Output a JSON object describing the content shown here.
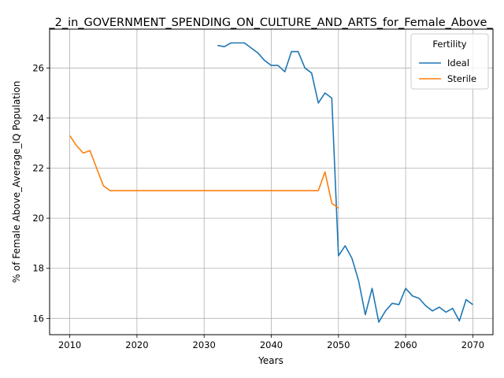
{
  "chart_data": {
    "type": "line",
    "title": "_2_in_GOVERNMENT_SPENDING_ON_CULTURE_AND_ARTS_for_Female_Above_",
    "xlabel": "Years",
    "ylabel": "% of Female Above_Average_IQ Population",
    "xlim": [
      2007,
      2073
    ],
    "ylim": [
      15.35,
      27.55
    ],
    "xticks": [
      2010,
      2020,
      2030,
      2040,
      2050,
      2060,
      2070
    ],
    "yticks": [
      16,
      18,
      20,
      22,
      24,
      26
    ],
    "grid": true,
    "legend": {
      "title": "Fertility",
      "placement": "top-right"
    },
    "series": [
      {
        "name": "Ideal",
        "color": "#1f77b4",
        "x": [
          2032,
          2033,
          2034,
          2035,
          2036,
          2037,
          2038,
          2039,
          2040,
          2041,
          2042,
          2043,
          2044,
          2045,
          2046,
          2047,
          2048,
          2049,
          2050,
          2051,
          2052,
          2053,
          2054,
          2055,
          2056,
          2057,
          2058,
          2059,
          2060,
          2061,
          2062,
          2063,
          2064,
          2065,
          2066,
          2067,
          2068,
          2069,
          2070
        ],
        "y": [
          26.9,
          26.85,
          27.0,
          27.0,
          27.0,
          26.8,
          26.6,
          26.3,
          26.1,
          26.1,
          25.85,
          26.65,
          26.65,
          26.0,
          25.8,
          24.6,
          25.0,
          24.8,
          18.5,
          18.9,
          18.4,
          17.5,
          16.15,
          17.2,
          15.85,
          16.3,
          16.6,
          16.55,
          17.2,
          16.9,
          16.8,
          16.5,
          16.3,
          16.45,
          16.25,
          16.4,
          15.9,
          16.75,
          16.55
        ]
      },
      {
        "name": "Sterile",
        "color": "#ff7f0e",
        "x": [
          2010,
          2011,
          2012,
          2013,
          2014,
          2015,
          2016,
          2017,
          2018,
          2019,
          2020,
          2021,
          2022,
          2023,
          2024,
          2025,
          2026,
          2027,
          2028,
          2029,
          2030,
          2031,
          2032,
          2033,
          2034,
          2035,
          2036,
          2037,
          2038,
          2039,
          2040,
          2041,
          2042,
          2043,
          2044,
          2045,
          2046,
          2047,
          2048,
          2049,
          2050
        ],
        "y": [
          23.3,
          22.9,
          22.6,
          22.7,
          22.0,
          21.3,
          21.1,
          21.1,
          21.1,
          21.1,
          21.1,
          21.1,
          21.1,
          21.1,
          21.1,
          21.1,
          21.1,
          21.1,
          21.1,
          21.1,
          21.1,
          21.1,
          21.1,
          21.1,
          21.1,
          21.1,
          21.1,
          21.1,
          21.1,
          21.1,
          21.1,
          21.1,
          21.1,
          21.1,
          21.1,
          21.1,
          21.1,
          21.1,
          21.85,
          20.6,
          20.4
        ]
      }
    ]
  }
}
